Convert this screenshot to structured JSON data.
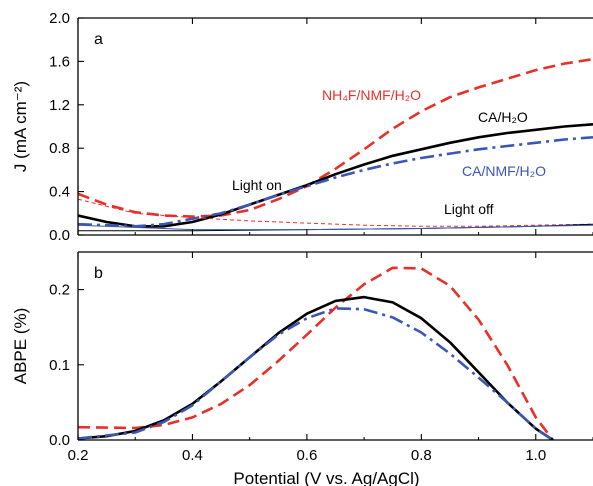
{
  "chart_data": [
    {
      "panel_label": "a",
      "type": "line",
      "ylabel": "J (mA cm⁻²)",
      "xlabel": "",
      "xlim": [
        0.2,
        1.1
      ],
      "ylim": [
        0.0,
        2.0
      ],
      "xticks": [
        0.2,
        0.4,
        0.6,
        0.8,
        1.0
      ],
      "xtick_labels_shown": false,
      "yticks": [
        0.0,
        0.4,
        0.8,
        1.2,
        1.6,
        2.0
      ],
      "ytick_labels": [
        "0.0",
        "0.4",
        "0.8",
        "1.2",
        "1.6",
        "2.0"
      ],
      "series": [
        {
          "name": "NH₄F/NMF/H₂O",
          "condition": "light on",
          "color": "#e8302a",
          "style": "dashed",
          "x": [
            0.2,
            0.25,
            0.3,
            0.35,
            0.4,
            0.45,
            0.5,
            0.55,
            0.6,
            0.65,
            0.7,
            0.75,
            0.8,
            0.85,
            0.9,
            0.95,
            1.0,
            1.05,
            1.1
          ],
          "y": [
            0.38,
            0.28,
            0.21,
            0.18,
            0.17,
            0.18,
            0.23,
            0.33,
            0.45,
            0.61,
            0.79,
            0.98,
            1.14,
            1.27,
            1.36,
            1.44,
            1.52,
            1.58,
            1.62
          ]
        },
        {
          "name": "CA/H₂O",
          "condition": "light on",
          "color": "#000000",
          "style": "solid",
          "x": [
            0.2,
            0.25,
            0.3,
            0.35,
            0.4,
            0.45,
            0.5,
            0.55,
            0.6,
            0.65,
            0.7,
            0.75,
            0.8,
            0.85,
            0.9,
            0.95,
            1.0,
            1.05,
            1.1
          ],
          "y": [
            0.18,
            0.12,
            0.08,
            0.08,
            0.12,
            0.19,
            0.28,
            0.37,
            0.46,
            0.56,
            0.65,
            0.73,
            0.79,
            0.85,
            0.9,
            0.94,
            0.97,
            1.0,
            1.02
          ]
        },
        {
          "name": "CA/NMF/H₂O",
          "condition": "light on",
          "color": "#3a57b5",
          "style": "dash-dot",
          "x": [
            0.2,
            0.25,
            0.3,
            0.35,
            0.4,
            0.45,
            0.5,
            0.55,
            0.6,
            0.65,
            0.7,
            0.75,
            0.8,
            0.85,
            0.9,
            0.95,
            1.0,
            1.05,
            1.1
          ],
          "y": [
            0.1,
            0.09,
            0.08,
            0.1,
            0.15,
            0.2,
            0.28,
            0.37,
            0.45,
            0.53,
            0.6,
            0.66,
            0.71,
            0.75,
            0.79,
            0.82,
            0.85,
            0.88,
            0.9
          ]
        },
        {
          "name": "NH₄F/NMF/H₂O (dark)",
          "condition": "light off",
          "color": "#e8302a",
          "style": "thin-dashed",
          "x": [
            0.2,
            0.3,
            0.4,
            0.5,
            0.6,
            0.7,
            0.8,
            0.9,
            1.0,
            1.1
          ],
          "y": [
            0.33,
            0.2,
            0.16,
            0.13,
            0.11,
            0.09,
            0.08,
            0.08,
            0.09,
            0.1
          ]
        },
        {
          "name": "CA/H₂O (dark)",
          "condition": "light off",
          "color": "#000000",
          "style": "thin-solid",
          "x": [
            0.2,
            0.4,
            0.6,
            0.8,
            0.9,
            1.0,
            1.1
          ],
          "y": [
            0.04,
            0.04,
            0.05,
            0.06,
            0.07,
            0.08,
            0.1
          ]
        },
        {
          "name": "CA/NMF/H₂O (dark)",
          "condition": "light off",
          "color": "#3a57b5",
          "style": "thin-solid",
          "x": [
            0.2,
            0.4,
            0.6,
            0.8,
            1.0,
            1.1
          ],
          "y": [
            0.09,
            0.05,
            0.05,
            0.06,
            0.08,
            0.09
          ]
        }
      ],
      "annotations": {
        "nh4f": "NH₄F/NMF/H₂O",
        "ca_h2o": "CA/H₂O",
        "ca_nmf": "CA/NMF/H₂O",
        "light_on": "Light on",
        "light_off": "Light off"
      }
    },
    {
      "panel_label": "b",
      "type": "line",
      "ylabel": "ABPE (%)",
      "xlabel": "Potential (V vs. Ag/AgCl)",
      "xlim": [
        0.2,
        1.1
      ],
      "ylim": [
        0.0,
        0.25
      ],
      "xticks": [
        0.2,
        0.4,
        0.6,
        0.8,
        1.0
      ],
      "xtick_labels": [
        "0.2",
        "0.4",
        "0.6",
        "0.8",
        "1.0"
      ],
      "yticks": [
        0.0,
        0.1,
        0.2
      ],
      "ytick_labels": [
        "0.0",
        "0.1",
        "0.2"
      ],
      "series": [
        {
          "name": "NH₄F/NMF/H₂O",
          "color": "#e8302a",
          "style": "dashed",
          "x": [
            0.2,
            0.3,
            0.35,
            0.4,
            0.45,
            0.5,
            0.55,
            0.6,
            0.65,
            0.7,
            0.75,
            0.8,
            0.85,
            0.9,
            0.95,
            1.0,
            1.03
          ],
          "y": [
            0.017,
            0.016,
            0.02,
            0.03,
            0.048,
            0.073,
            0.105,
            0.14,
            0.176,
            0.207,
            0.229,
            0.228,
            0.205,
            0.16,
            0.1,
            0.03,
            0.0
          ]
        },
        {
          "name": "CA/H₂O",
          "color": "#000000",
          "style": "solid",
          "x": [
            0.2,
            0.25,
            0.3,
            0.35,
            0.4,
            0.45,
            0.5,
            0.55,
            0.6,
            0.65,
            0.7,
            0.75,
            0.8,
            0.85,
            0.9,
            0.95,
            1.0,
            1.03
          ],
          "y": [
            0.002,
            0.005,
            0.012,
            0.026,
            0.048,
            0.078,
            0.11,
            0.142,
            0.168,
            0.185,
            0.19,
            0.183,
            0.162,
            0.13,
            0.09,
            0.05,
            0.015,
            0.0
          ]
        },
        {
          "name": "CA/NMF/H₂O",
          "color": "#3a57b5",
          "style": "dash-dot",
          "x": [
            0.2,
            0.3,
            0.35,
            0.4,
            0.45,
            0.5,
            0.55,
            0.6,
            0.65,
            0.7,
            0.75,
            0.8,
            0.85,
            0.9,
            0.95,
            1.0,
            1.03
          ],
          "y": [
            0.002,
            0.01,
            0.024,
            0.046,
            0.078,
            0.11,
            0.14,
            0.162,
            0.175,
            0.174,
            0.163,
            0.143,
            0.115,
            0.083,
            0.05,
            0.015,
            0.0
          ]
        }
      ]
    }
  ]
}
